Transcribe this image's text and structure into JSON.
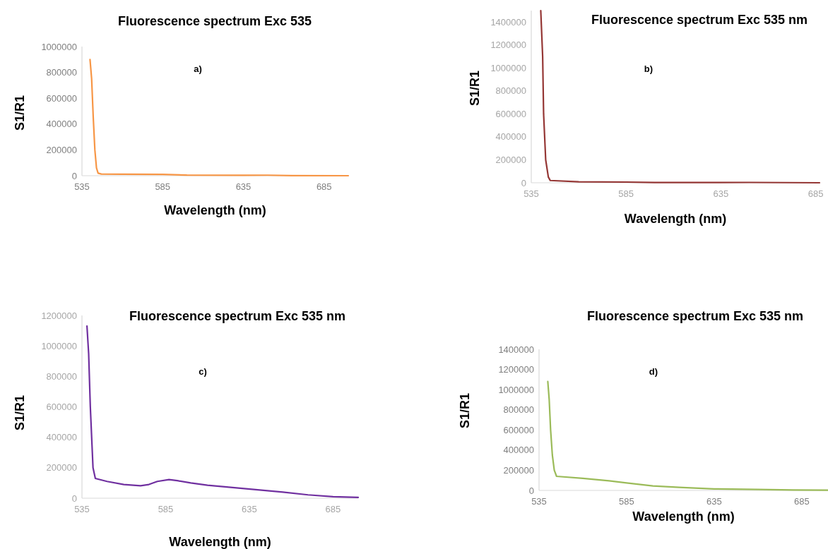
{
  "chart_data": [
    {
      "type": "line",
      "title": "Fluorescence spectrum Exc 535",
      "xlabel": "Wavelength (nm)",
      "ylabel": "S1/R1",
      "annotations": [
        "a)"
      ],
      "xlim": [
        535,
        700
      ],
      "xticks": [
        535,
        585,
        635,
        685
      ],
      "ylim": [
        0,
        1000000
      ],
      "yticks": [
        0,
        200000,
        400000,
        600000,
        800000,
        1000000
      ],
      "series": [
        {
          "color": "#f79646",
          "x": [
            540,
            541,
            542,
            543,
            544,
            545,
            547,
            560,
            585,
            600,
            635,
            650,
            665,
            700
          ],
          "values": [
            900000,
            750000,
            450000,
            200000,
            60000,
            20000,
            13000,
            12000,
            10000,
            5000,
            3000,
            4000,
            1000,
            0
          ]
        }
      ]
    },
    {
      "type": "line",
      "title": "Fluorescence spectrum Exc 535 nm",
      "xlabel": "Wavelength (nm)",
      "ylabel": "S1/R1",
      "annotations": [
        "b)"
      ],
      "xlim": [
        535,
        687
      ],
      "xticks": [
        535,
        585,
        635,
        685
      ],
      "ylim": [
        0,
        1500000
      ],
      "yticks": [
        0,
        200000,
        400000,
        600000,
        800000,
        1000000,
        1200000,
        1400000
      ],
      "series": [
        {
          "color": "#953735",
          "x": [
            540,
            541,
            541.5,
            542.6,
            544,
            545,
            560,
            585,
            600,
            650,
            687
          ],
          "values": [
            1500000,
            1100000,
            600000,
            200000,
            50000,
            20000,
            8000,
            6000,
            2000,
            3000,
            0
          ]
        }
      ]
    },
    {
      "type": "line",
      "title": "Fluorescence spectrum Exc 535 nm",
      "xlabel": "Wavelength (nm)",
      "ylabel": "S1/R1",
      "annotations": [
        "c)"
      ],
      "xlim": [
        535,
        700
      ],
      "xticks": [
        535,
        585,
        635,
        685
      ],
      "ylim": [
        0,
        1200000
      ],
      "yticks": [
        0,
        200000,
        400000,
        600000,
        800000,
        1000000,
        1200000
      ],
      "series": [
        {
          "color": "#7030a0",
          "x": [
            538,
            539,
            540,
            541,
            541.6,
            543,
            550,
            560,
            570,
            575,
            580,
            587,
            592,
            600,
            610,
            625,
            640,
            655,
            670,
            685,
            700
          ],
          "values": [
            1130000,
            950000,
            600000,
            350000,
            200000,
            130000,
            110000,
            90000,
            82000,
            90000,
            110000,
            122000,
            115000,
            100000,
            85000,
            70000,
            55000,
            40000,
            22000,
            10000,
            5000
          ]
        }
      ]
    },
    {
      "type": "line",
      "title": "Fluorescence spectrum Exc 535 nm",
      "xlabel": "Wavelength (nm)",
      "ylabel": "S1/R1",
      "annotations": [
        "d)"
      ],
      "xlim": [
        535,
        700
      ],
      "xticks": [
        535,
        585,
        635,
        685
      ],
      "ylim": [
        0,
        1400000
      ],
      "yticks": [
        0,
        200000,
        400000,
        600000,
        800000,
        1000000,
        1200000,
        1400000
      ],
      "series": [
        {
          "color": "#9bbb59",
          "x": [
            540,
            540.8,
            541.6,
            542.6,
            543.7,
            545,
            560,
            575,
            585,
            600,
            615,
            635,
            660,
            680,
            700
          ],
          "values": [
            1080000,
            900000,
            600000,
            350000,
            200000,
            140000,
            120000,
            95000,
            75000,
            45000,
            30000,
            15000,
            10000,
            5000,
            3000
          ]
        }
      ]
    }
  ]
}
